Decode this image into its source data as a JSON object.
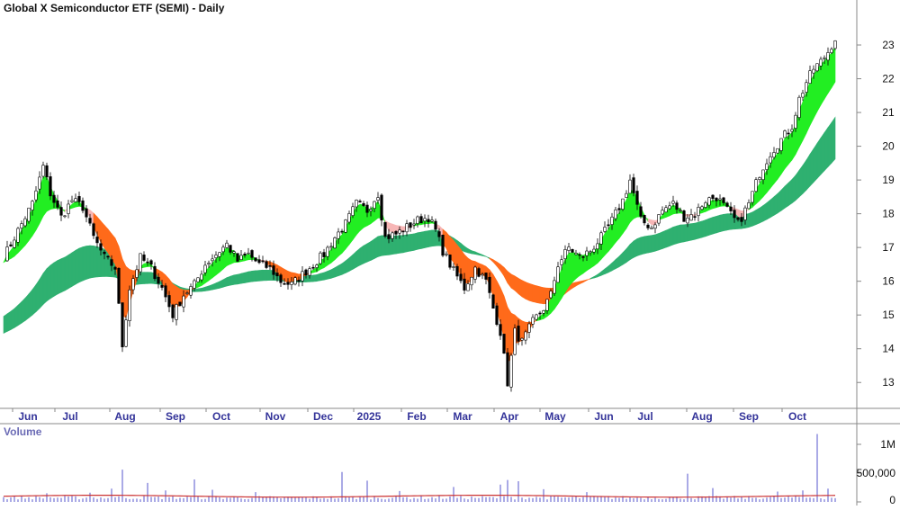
{
  "chart_data": [
    {
      "type": "candlestick",
      "title": "Global X Semiconductor ETF (SEMI) - Daily",
      "ylim": [
        12.5,
        23.8
      ],
      "yticks": [
        13,
        14,
        15,
        16,
        17,
        18,
        19,
        20,
        21,
        22,
        23
      ],
      "x_labels": [
        "Jun",
        "Jul",
        "Aug",
        "Sep",
        "Oct",
        "Nov",
        "Dec",
        "2025",
        "Feb",
        "Mar",
        "Apr",
        "May",
        "Jun",
        "Jul",
        "Aug",
        "Sep",
        "Oct"
      ],
      "grid": false,
      "colors": {
        "short_up": "#22ee22",
        "short_down": "#ff6a1a",
        "short_pullback": "#f7b6b6",
        "long_up": "#2fb070",
        "long_down": "#ff6a1a",
        "candle": "#000000",
        "axis": "#888888",
        "month_text": "#333399",
        "title": "#111111"
      },
      "close_anchors": [
        [
          0,
          16.7
        ],
        [
          4,
          17.5
        ],
        [
          8,
          18.3
        ],
        [
          11,
          19.4
        ],
        [
          13,
          18.6
        ],
        [
          16,
          17.9
        ],
        [
          19,
          18.4
        ],
        [
          22,
          18.2
        ],
        [
          25,
          17.3
        ],
        [
          28,
          16.7
        ],
        [
          31,
          16.4
        ],
        [
          33,
          14.1
        ],
        [
          35,
          15.8
        ],
        [
          38,
          16.7
        ],
        [
          41,
          16.4
        ],
        [
          44,
          15.8
        ],
        [
          47,
          15.0
        ],
        [
          50,
          15.6
        ],
        [
          53,
          15.9
        ],
        [
          56,
          16.5
        ],
        [
          59,
          16.8
        ],
        [
          62,
          17.1
        ],
        [
          65,
          16.6
        ],
        [
          68,
          16.8
        ],
        [
          71,
          16.5
        ],
        [
          74,
          16.4
        ],
        [
          77,
          16.0
        ],
        [
          80,
          15.9
        ],
        [
          83,
          16.2
        ],
        [
          86,
          16.5
        ],
        [
          89,
          16.8
        ],
        [
          92,
          17.3
        ],
        [
          95,
          17.7
        ],
        [
          98,
          18.3
        ],
        [
          101,
          18.1
        ],
        [
          104,
          18.6
        ],
        [
          106,
          17.3
        ],
        [
          109,
          17.4
        ],
        [
          112,
          17.6
        ],
        [
          115,
          17.8
        ],
        [
          118,
          17.9
        ],
        [
          120,
          17.5
        ],
        [
          122,
          16.9
        ],
        [
          125,
          16.3
        ],
        [
          128,
          15.8
        ],
        [
          131,
          16.4
        ],
        [
          134,
          16.0
        ],
        [
          136,
          15.2
        ],
        [
          138,
          14.5
        ],
        [
          140,
          13.0
        ],
        [
          142,
          14.5
        ],
        [
          144,
          14.2
        ],
        [
          147,
          14.8
        ],
        [
          150,
          15.2
        ],
        [
          152,
          15.6
        ],
        [
          154,
          16.5
        ],
        [
          157,
          17.0
        ],
        [
          160,
          16.7
        ],
        [
          163,
          16.9
        ],
        [
          166,
          17.3
        ],
        [
          169,
          17.8
        ],
        [
          172,
          18.4
        ],
        [
          174,
          19.0
        ],
        [
          177,
          17.8
        ],
        [
          180,
          17.6
        ],
        [
          183,
          18.1
        ],
        [
          186,
          18.3
        ],
        [
          189,
          17.9
        ],
        [
          192,
          18.0
        ],
        [
          195,
          18.4
        ],
        [
          198,
          18.5
        ],
        [
          201,
          18.1
        ],
        [
          204,
          17.7
        ],
        [
          207,
          18.3
        ],
        [
          210,
          19.2
        ],
        [
          213,
          19.8
        ],
        [
          216,
          20.2
        ],
        [
          219,
          20.6
        ],
        [
          221,
          21.4
        ],
        [
          223,
          21.9
        ],
        [
          225,
          22.3
        ],
        [
          227,
          22.5
        ],
        [
          229,
          22.8
        ],
        [
          231,
          23.2
        ]
      ]
    },
    {
      "type": "bar",
      "title": "Volume",
      "ylim": [
        0,
        1250000
      ],
      "yticks": [
        0,
        500000,
        1000000
      ],
      "ytick_labels": [
        "0",
        "500,000",
        "1M"
      ],
      "colors": {
        "bar": "#5555cc",
        "average": "#cc3333",
        "title": "#6b6bb5"
      },
      "base_level": 70000,
      "avg_level": 110000,
      "spikes": [
        [
          12,
          150000
        ],
        [
          24,
          160000
        ],
        [
          30,
          230000
        ],
        [
          33,
          560000
        ],
        [
          40,
          330000
        ],
        [
          45,
          200000
        ],
        [
          53,
          390000
        ],
        [
          58,
          210000
        ],
        [
          70,
          170000
        ],
        [
          94,
          520000
        ],
        [
          101,
          370000
        ],
        [
          110,
          190000
        ],
        [
          125,
          260000
        ],
        [
          138,
          300000
        ],
        [
          140,
          380000
        ],
        [
          143,
          360000
        ],
        [
          150,
          220000
        ],
        [
          162,
          170000
        ],
        [
          190,
          490000
        ],
        [
          197,
          240000
        ],
        [
          215,
          180000
        ],
        [
          222,
          200000
        ],
        [
          226,
          1180000
        ],
        [
          229,
          230000
        ]
      ]
    }
  ]
}
